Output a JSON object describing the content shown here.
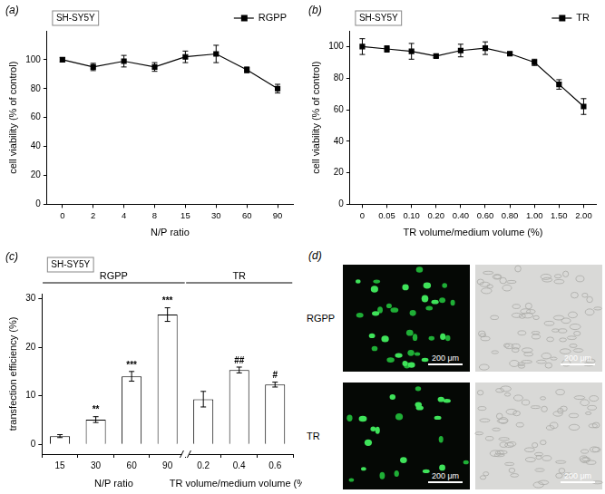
{
  "chart_data": [
    {
      "panel": "(a)",
      "label": "SH-SY5Y",
      "type": "line",
      "x_label": "N/P ratio",
      "y_label": "cell viability (% of control)",
      "categories": [
        "0",
        "2",
        "4",
        "8",
        "15",
        "30",
        "60",
        "90"
      ],
      "series": [
        {
          "name": "RGPP",
          "color": "#000000",
          "marker": "square",
          "values": [
            100,
            95,
            99,
            95,
            102,
            104,
            93,
            80
          ],
          "errors": [
            1.5,
            2.5,
            4,
            3,
            4,
            6,
            2,
            3
          ]
        }
      ],
      "ylim": [
        0,
        120
      ],
      "yticks": [
        0,
        20,
        40,
        60,
        80,
        100
      ],
      "legend": "upper right",
      "grid": false
    },
    {
      "panel": "(b)",
      "label": "SH-SY5Y",
      "type": "line",
      "x_label": "TR volume/medium volume (%)",
      "y_label": "cell viability (% of control)",
      "categories": [
        "0",
        "0.05",
        "0.10",
        "0.20",
        "0.40",
        "0.60",
        "0.80",
        "1.00",
        "1.50",
        "2.00"
      ],
      "series": [
        {
          "name": "TR",
          "color": "#000000",
          "marker": "square",
          "values": [
            100,
            98.5,
            97,
            94,
            97.5,
            99,
            95.5,
            90,
            76,
            62
          ],
          "errors": [
            5,
            2,
            5,
            1,
            4,
            4,
            1,
            2,
            3,
            5
          ]
        }
      ],
      "ylim": [
        0,
        110
      ],
      "yticks": [
        0,
        20,
        40,
        60,
        80,
        100
      ],
      "legend": "upper right",
      "grid": false
    },
    {
      "panel": "(c)",
      "label": "SH-SY5Y",
      "type": "bar",
      "y_label": "transfection efficiency (%)",
      "color": "#ffffff",
      "groups": [
        {
          "name": "RGPP",
          "x_label": "N/P ratio",
          "categories": [
            "15",
            "30",
            "60",
            "90"
          ],
          "values": [
            1.7,
            5.1,
            14,
            26.7
          ],
          "errors": [
            0.3,
            0.6,
            1.0,
            1.4
          ],
          "annotations": [
            null,
            "**",
            "***",
            "***"
          ]
        },
        {
          "name": "TR",
          "x_label": "TR volume/medium volume (%)",
          "categories": [
            "0.2",
            "0.4",
            "0.6"
          ],
          "values": [
            9.3,
            15.3,
            12.3
          ],
          "errors": [
            1.6,
            0.6,
            0.5
          ],
          "annotations": [
            null,
            "##",
            "#"
          ]
        }
      ],
      "ylim": [
        -2,
        31
      ],
      "yticks": [
        0,
        10,
        20,
        30
      ],
      "grid": false
    }
  ],
  "images": {
    "panel": "(d)",
    "rows": [
      {
        "label": "RGPP",
        "scale_bars": [
          "200 μm",
          "200 μm"
        ]
      },
      {
        "label": "TR",
        "scale_bars": [
          "200 μm",
          "200 μm"
        ]
      }
    ]
  }
}
